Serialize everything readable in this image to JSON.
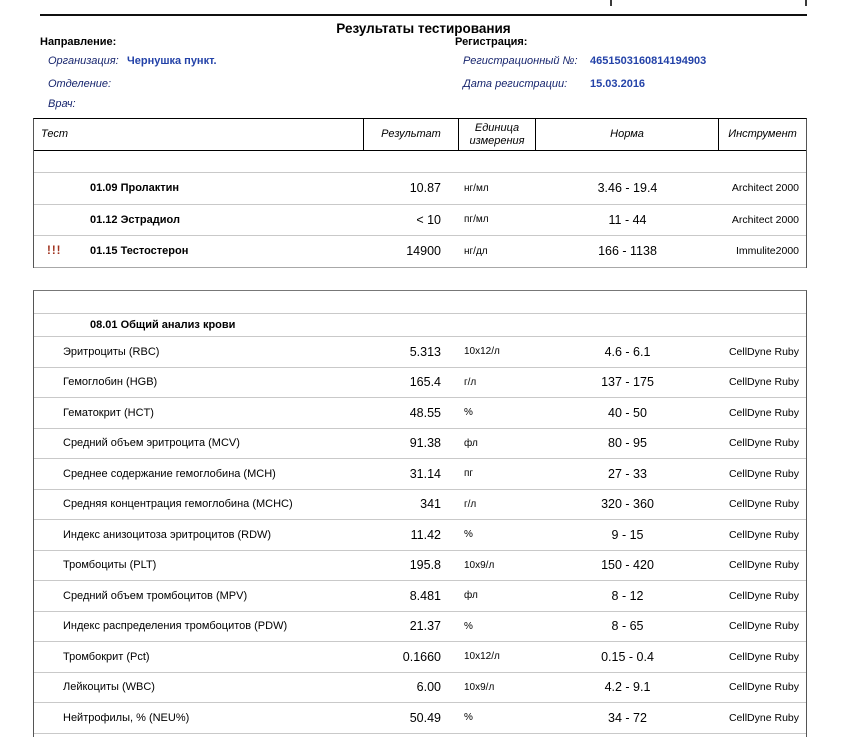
{
  "page": {
    "title": "Результаты тестирования"
  },
  "colors": {
    "value_blue": "#2342a8",
    "label_navy": "#16246d",
    "flag_red": "#a0321e",
    "row_separator": "#c9c9c9"
  },
  "referral": {
    "heading": "Направление:",
    "fields": [
      {
        "label": "Организация:",
        "value": "Чернушка пункт."
      },
      {
        "label": "Отделение:",
        "value": ""
      },
      {
        "label": "Врач:",
        "value": ""
      }
    ]
  },
  "registration": {
    "heading": "Регистрация:",
    "fields": [
      {
        "label": "Регистрационный №:",
        "value": "4651503160814194903"
      },
      {
        "label": "Дата регистрации:",
        "value": "15.03.2016"
      }
    ]
  },
  "table_headers": {
    "test": "Тест",
    "result": "Результат",
    "unit": "Единица измерения",
    "norm": "Норма",
    "instrument": "Инструмент"
  },
  "sections": [
    {
      "name": "hormones",
      "group_header": null,
      "rows": [
        {
          "flag": "",
          "test": "01.09 Пролактин",
          "result": "10.87",
          "unit": "нг/мл",
          "norm": "3.46 - 19.4",
          "instrument": "Architect 2000"
        },
        {
          "flag": "",
          "test": "01.12 Эстрадиол",
          "result": "< 10",
          "unit": "пг/мл",
          "norm": "11 - 44",
          "instrument": "Architect 2000"
        },
        {
          "flag": "!!!",
          "test": "01.15 Тестостерон",
          "result": "14900",
          "unit": "нг/дл",
          "norm": "166 - 1138",
          "instrument": "Immulite2000"
        }
      ]
    },
    {
      "name": "cbc",
      "group_header": "08.01 Общий анализ крови",
      "rows": [
        {
          "flag": "",
          "test": "Эритроциты (RBC)",
          "result": "5.313",
          "unit": "10x12/л",
          "norm": "4.6 - 6.1",
          "instrument": "CellDyne Ruby"
        },
        {
          "flag": "",
          "test": "Гемоглобин (HGB)",
          "result": "165.4",
          "unit": "г/л",
          "norm": "137 - 175",
          "instrument": "CellDyne Ruby"
        },
        {
          "flag": "",
          "test": "Гематокрит (HCT)",
          "result": "48.55",
          "unit": "%",
          "norm": "40 - 50",
          "instrument": "CellDyne Ruby"
        },
        {
          "flag": "",
          "test": "Средний объем эритроцита (MCV)",
          "result": "91.38",
          "unit": "фл",
          "norm": "80 - 95",
          "instrument": "CellDyne Ruby"
        },
        {
          "flag": "",
          "test": "Среднее содержание гемоглобина (MCH)",
          "result": "31.14",
          "unit": "пг",
          "norm": "27 - 33",
          "instrument": "CellDyne Ruby"
        },
        {
          "flag": "",
          "test": "Средняя концентрация гемоглобина (MCHC)",
          "result": "341",
          "unit": "г/л",
          "norm": "320 - 360",
          "instrument": "CellDyne Ruby"
        },
        {
          "flag": "",
          "test": "Индекс анизоцитоза эритроцитов (RDW)",
          "result": "11.42",
          "unit": "%",
          "norm": "9 - 15",
          "instrument": "CellDyne Ruby"
        },
        {
          "flag": "",
          "test": "Тромбоциты (PLT)",
          "result": "195.8",
          "unit": "10x9/л",
          "norm": "150 - 420",
          "instrument": "CellDyne Ruby"
        },
        {
          "flag": "",
          "test": "Средний объем тромбоцитов (MPV)",
          "result": "8.481",
          "unit": "фл",
          "norm": "8 - 12",
          "instrument": "CellDyne Ruby"
        },
        {
          "flag": "",
          "test": "Индекс распределения тромбоцитов (PDW)",
          "result": "21.37",
          "unit": "%",
          "norm": "8 - 65",
          "instrument": "CellDyne Ruby"
        },
        {
          "flag": "",
          "test": "Тромбокрит (Pct)",
          "result": "0.1660",
          "unit": "10x12/л",
          "norm": "0.15 - 0.4",
          "instrument": "CellDyne Ruby"
        },
        {
          "flag": "",
          "test": "Лейкоциты (WBC)",
          "result": "6.00",
          "unit": "10x9/л",
          "norm": "4.2 - 9.1",
          "instrument": "CellDyne Ruby"
        },
        {
          "flag": "",
          "test": "Нейтрофилы, % (NEU%)",
          "result": "50.49",
          "unit": "%",
          "norm": "34 - 72",
          "instrument": "CellDyne Ruby"
        }
      ]
    }
  ]
}
